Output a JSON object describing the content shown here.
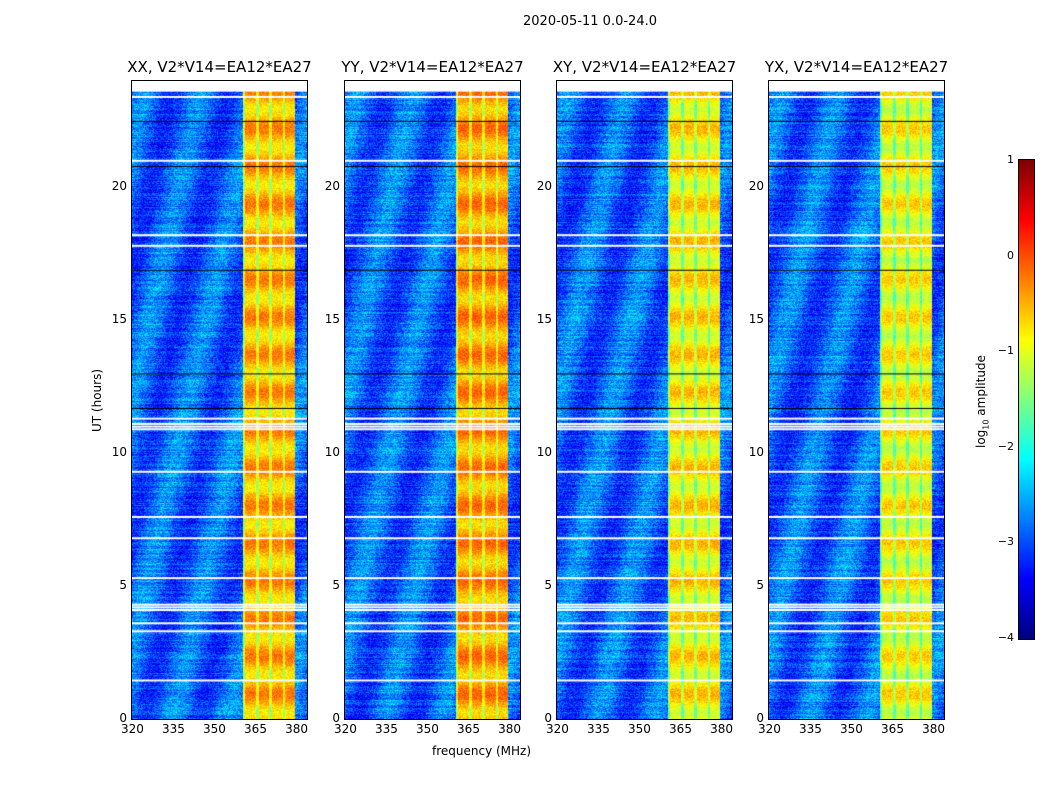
{
  "chart_data": {
    "type": "heatmap",
    "title": "2020-05-11 0.0-24.0",
    "xlabel": "frequency (MHz)",
    "ylabel": "UT (hours)",
    "xlim": [
      320,
      384
    ],
    "ylim": [
      0,
      24
    ],
    "xticks": [
      "320",
      "335",
      "350",
      "365",
      "380"
    ],
    "xtick_values": [
      320,
      335,
      350,
      365,
      380
    ],
    "yticks": [
      "0",
      "5",
      "10",
      "15",
      "20"
    ],
    "ytick_values": [
      0,
      5,
      10,
      15,
      20
    ],
    "panels": [
      {
        "title": "XX, V2*V14=EA12*EA27",
        "band_level": -0.5
      },
      {
        "title": "YY, V2*V14=EA12*EA27",
        "band_level": -0.4
      },
      {
        "title": "XY, V2*V14=EA12*EA27",
        "band_level": -0.8
      },
      {
        "title": "YX, V2*V14=EA12*EA27",
        "band_level": -0.9
      }
    ],
    "background_level": -2.9,
    "rfi_band_mhz": [
      360.5,
      379.5
    ],
    "flagged_times_ut": [
      1.45,
      3.3,
      3.6,
      4.1,
      4.2,
      4.3,
      5.3,
      6.8,
      7.6,
      9.3,
      10.9,
      11.0,
      11.1,
      11.3,
      17.8,
      18.2,
      21.0,
      23.4
    ],
    "colorbar": {
      "label": "log10 amplitude",
      "label_main": "log",
      "label_sub": "10",
      "label_rest": " amplitude",
      "range": [
        -4,
        1
      ],
      "ticks": [
        "1",
        "0",
        "−1",
        "−2",
        "−3",
        "−4"
      ],
      "tick_values": [
        1,
        0,
        -1,
        -2,
        -3,
        -4
      ],
      "colormap": "jet"
    }
  }
}
